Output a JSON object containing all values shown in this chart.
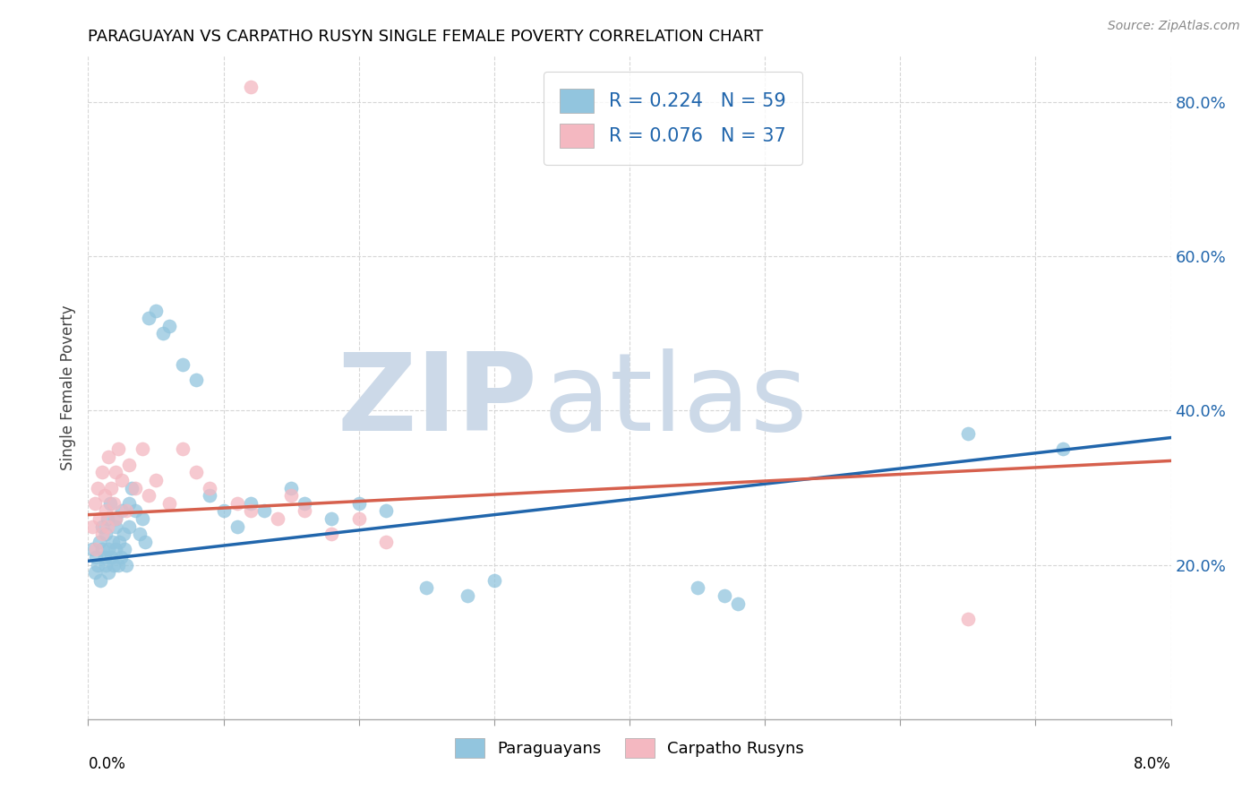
{
  "title": "PARAGUAYAN VS CARPATHO RUSYN SINGLE FEMALE POVERTY CORRELATION CHART",
  "source": "Source: ZipAtlas.com",
  "ylabel": "Single Female Poverty",
  "r_values": [
    0.224,
    0.076
  ],
  "n_values": [
    59,
    37
  ],
  "blue_color": "#92c5de",
  "pink_color": "#f4b8c1",
  "blue_line_color": "#2166ac",
  "pink_line_color": "#d6604d",
  "watermark_zip": "ZIP",
  "watermark_atlas": "atlas",
  "background_color": "#ffffff",
  "watermark_color": "#ccd9e8",
  "xlim": [
    0.0,
    0.08
  ],
  "ylim": [
    0.0,
    0.86
  ],
  "yticks": [
    0.2,
    0.4,
    0.6,
    0.8
  ],
  "ytick_labels": [
    "20.0%",
    "40.0%",
    "60.0%",
    "80.0%"
  ],
  "blue_x": [
    0.0003,
    0.0005,
    0.0006,
    0.0007,
    0.0008,
    0.0009,
    0.001,
    0.001,
    0.0012,
    0.0013,
    0.0013,
    0.0014,
    0.0015,
    0.0015,
    0.0016,
    0.0017,
    0.0018,
    0.0019,
    0.002,
    0.002,
    0.002,
    0.0022,
    0.0023,
    0.0024,
    0.0025,
    0.0026,
    0.0027,
    0.0028,
    0.003,
    0.003,
    0.0032,
    0.0035,
    0.0038,
    0.004,
    0.0042,
    0.0045,
    0.005,
    0.0055,
    0.006,
    0.007,
    0.008,
    0.009,
    0.01,
    0.011,
    0.012,
    0.013,
    0.015,
    0.016,
    0.018,
    0.02,
    0.022,
    0.025,
    0.028,
    0.03,
    0.045,
    0.047,
    0.048,
    0.065,
    0.072
  ],
  "blue_y": [
    0.22,
    0.19,
    0.21,
    0.2,
    0.23,
    0.18,
    0.25,
    0.22,
    0.21,
    0.24,
    0.2,
    0.26,
    0.22,
    0.19,
    0.28,
    0.21,
    0.23,
    0.2,
    0.26,
    0.22,
    0.25,
    0.2,
    0.23,
    0.21,
    0.27,
    0.24,
    0.22,
    0.2,
    0.28,
    0.25,
    0.3,
    0.27,
    0.24,
    0.26,
    0.23,
    0.52,
    0.53,
    0.5,
    0.51,
    0.46,
    0.44,
    0.29,
    0.27,
    0.25,
    0.28,
    0.27,
    0.3,
    0.28,
    0.26,
    0.28,
    0.27,
    0.17,
    0.16,
    0.18,
    0.17,
    0.16,
    0.15,
    0.37,
    0.35
  ],
  "pink_x": [
    0.0003,
    0.0005,
    0.0006,
    0.0007,
    0.0008,
    0.001,
    0.001,
    0.0012,
    0.0013,
    0.0014,
    0.0015,
    0.0017,
    0.0019,
    0.002,
    0.002,
    0.0022,
    0.0025,
    0.0028,
    0.003,
    0.0035,
    0.004,
    0.0045,
    0.005,
    0.006,
    0.007,
    0.008,
    0.009,
    0.011,
    0.012,
    0.014,
    0.015,
    0.016,
    0.018,
    0.02,
    0.022,
    0.065,
    0.012
  ],
  "pink_y": [
    0.25,
    0.28,
    0.22,
    0.3,
    0.26,
    0.32,
    0.24,
    0.29,
    0.27,
    0.25,
    0.34,
    0.3,
    0.28,
    0.32,
    0.26,
    0.35,
    0.31,
    0.27,
    0.33,
    0.3,
    0.35,
    0.29,
    0.31,
    0.28,
    0.35,
    0.32,
    0.3,
    0.28,
    0.27,
    0.26,
    0.29,
    0.27,
    0.24,
    0.26,
    0.23,
    0.13,
    0.82
  ],
  "marker_size": 120,
  "blue_trend_y0": 0.205,
  "blue_trend_y1": 0.365,
  "pink_trend_y0": 0.265,
  "pink_trend_y1": 0.335
}
